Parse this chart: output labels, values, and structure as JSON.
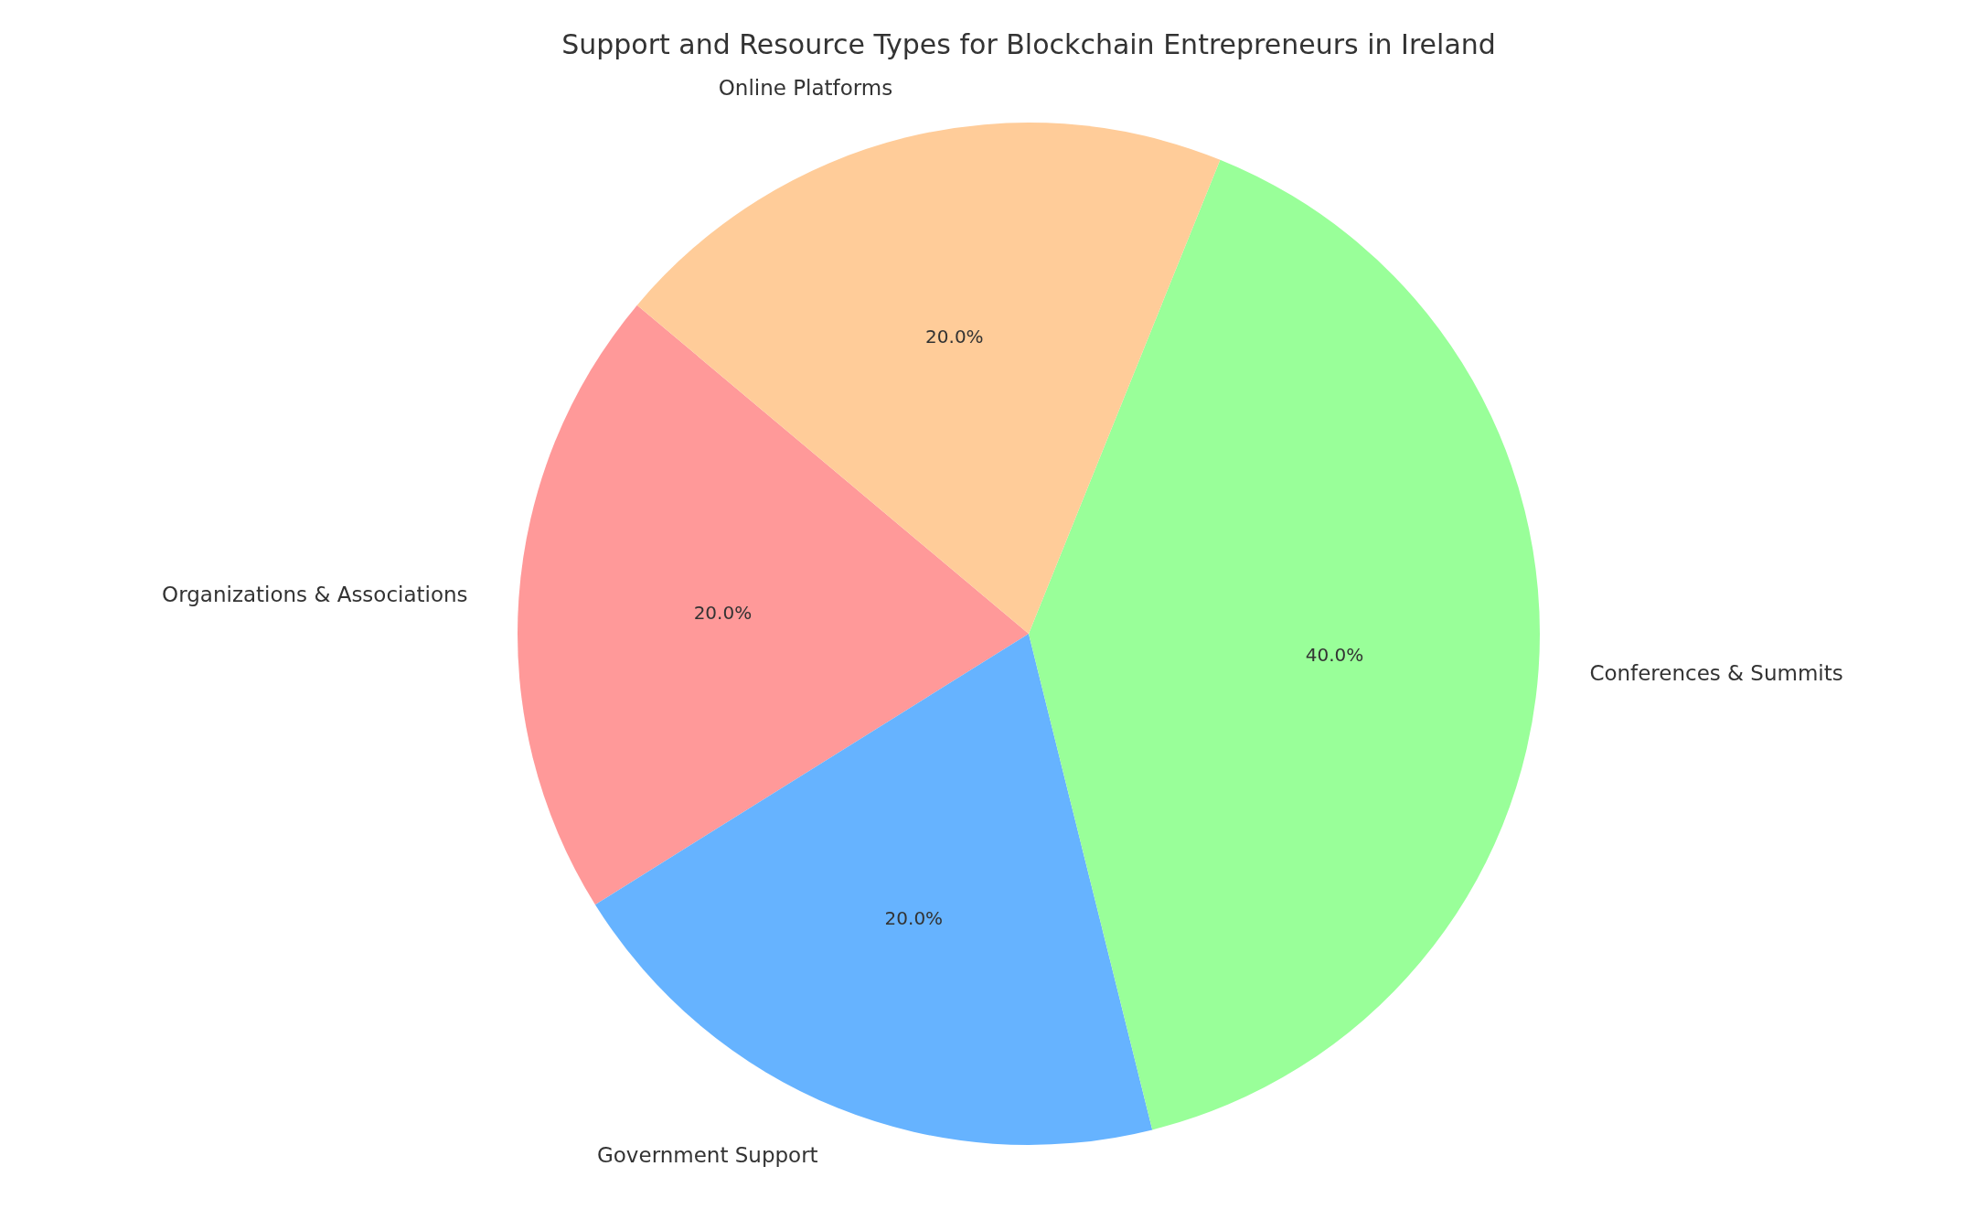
{
  "chart_data": {
    "type": "pie",
    "title": "Support and Resource Types for Blockchain Entrepreneurs in Ireland",
    "categories": [
      "Organizations & Associations",
      "Government Support",
      "Conferences & Summits",
      "Online Platforms"
    ],
    "values": [
      20,
      20,
      40,
      20
    ],
    "value_labels": [
      "20.0%",
      "20.0%",
      "40.0%",
      "20.0%"
    ],
    "colors": [
      "#ff9999",
      "#66b3ff",
      "#99ff99",
      "#ffcc99"
    ]
  }
}
